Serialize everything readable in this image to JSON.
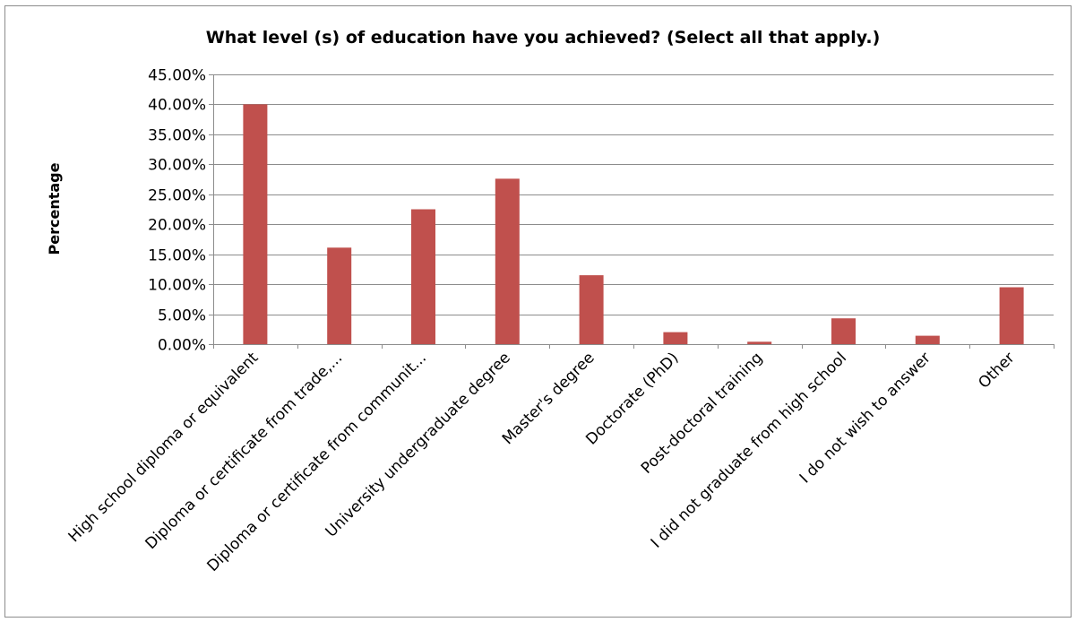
{
  "chart_data": {
    "type": "bar",
    "title": "What level (s) of education have you achieved? (Select all that apply.)",
    "xlabel": "",
    "ylabel": "Percentage",
    "ylim": [
      0,
      45
    ],
    "yticks": [
      "0.00%",
      "5.00%",
      "10.00%",
      "15.00%",
      "20.00%",
      "25.00%",
      "30.00%",
      "35.00%",
      "40.00%",
      "45.00%"
    ],
    "grid": true,
    "legend": "none",
    "bar_color": "#c0504d",
    "categories": [
      "High school diploma or equivalent",
      "Diploma or certificate from trade,...",
      "Diploma or certificate from communit...",
      "University undergraduate degree",
      "Master's degree",
      "Doctorate (PhD)",
      "Post-doctoral training",
      "I did not graduate from high school",
      "I do not wish to answer",
      "Other"
    ],
    "values": [
      40.0,
      16.1,
      22.5,
      27.6,
      11.5,
      2.0,
      0.4,
      4.3,
      1.4,
      9.5
    ]
  }
}
